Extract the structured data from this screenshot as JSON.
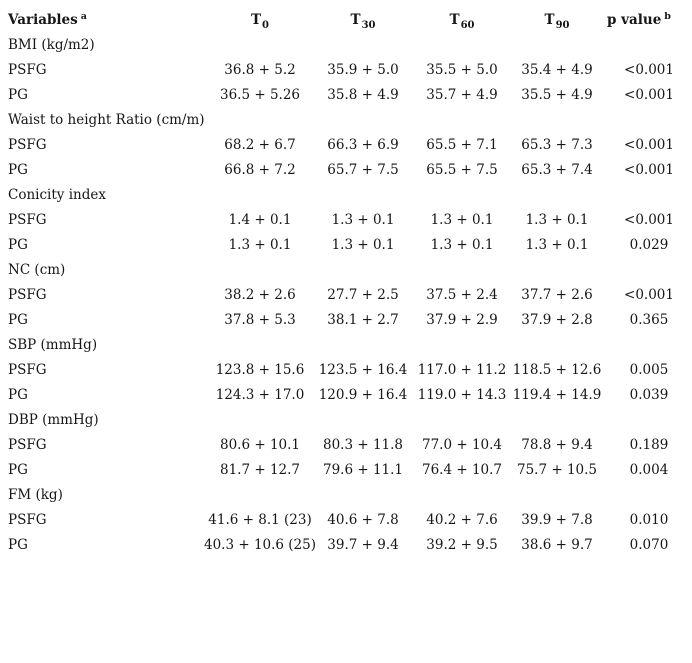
{
  "colors": {
    "background": "#ffffff",
    "text": "#161616"
  },
  "table": {
    "header": {
      "variables": {
        "label": "Variables",
        "note_mark": "a"
      },
      "timepoints": [
        {
          "label": "T",
          "subscript": "0"
        },
        {
          "label": "T",
          "subscript": "30"
        },
        {
          "label": "T",
          "subscript": "60"
        },
        {
          "label": "T",
          "subscript": "90"
        }
      ],
      "p_value": {
        "label": "p value",
        "note_mark": "b"
      }
    },
    "rows": [
      {
        "type": "section",
        "label": "BMI (kg/m2)"
      },
      {
        "type": "data",
        "label": "PSFG",
        "values": [
          "36.8 + 5.2",
          "35.9 + 5.0",
          "35.5 + 5.0",
          "35.4 + 4.9"
        ],
        "p": "<0.001"
      },
      {
        "type": "data",
        "label": "PG",
        "values": [
          "36.5 + 5.26",
          "35.8 + 4.9",
          "35.7 + 4.9",
          "35.5 + 4.9"
        ],
        "p": "<0.001"
      },
      {
        "type": "section",
        "label": "Waist to height Ratio (cm/m)"
      },
      {
        "type": "data",
        "label": "PSFG",
        "values": [
          "68.2 + 6.7",
          "66.3 + 6.9",
          "65.5 + 7.1",
          "65.3 + 7.3"
        ],
        "p": "<0.001"
      },
      {
        "type": "data",
        "label": "PG",
        "values": [
          "66.8 + 7.2",
          "65.7 + 7.5",
          "65.5 + 7.5",
          "65.3 + 7.4"
        ],
        "p": "<0.001"
      },
      {
        "type": "section",
        "label": "Conicity index"
      },
      {
        "type": "data",
        "label": "PSFG",
        "values": [
          "1.4 + 0.1",
          "1.3 + 0.1",
          "1.3 + 0.1",
          "1.3 + 0.1"
        ],
        "p": "<0.001"
      },
      {
        "type": "data",
        "label": "PG",
        "values": [
          "1.3 + 0.1",
          "1.3 + 0.1",
          "1.3 + 0.1",
          "1.3 + 0.1"
        ],
        "p": "0.029"
      },
      {
        "type": "section",
        "label": "NC (cm)"
      },
      {
        "type": "data",
        "label": "PSFG",
        "values": [
          "38.2 + 2.6",
          "27.7 + 2.5",
          "37.5 + 2.4",
          "37.7 + 2.6"
        ],
        "p": "<0.001"
      },
      {
        "type": "data",
        "label": "PG",
        "values": [
          "37.8 + 5.3",
          "38.1 + 2.7",
          "37.9 + 2.9",
          "37.9 + 2.8"
        ],
        "p": "0.365"
      },
      {
        "type": "section",
        "label": "SBP (mmHg)"
      },
      {
        "type": "data",
        "label": "PSFG",
        "values": [
          "123.8 + 15.6",
          "123.5 + 16.4",
          "117.0 + 11.2",
          "118.5 + 12.6"
        ],
        "p": "0.005"
      },
      {
        "type": "data",
        "label": "PG",
        "values": [
          "124.3 + 17.0",
          "120.9 + 16.4",
          "119.0 + 14.3",
          "119.4 + 14.9"
        ],
        "p": "0.039"
      },
      {
        "type": "section",
        "label": "DBP (mmHg)"
      },
      {
        "type": "data",
        "label": "PSFG",
        "values": [
          "80.6 + 10.1",
          "80.3 + 11.8",
          "77.0 + 10.4",
          "78.8 + 9.4"
        ],
        "p": "0.189"
      },
      {
        "type": "data",
        "label": "PG",
        "values": [
          "81.7 + 12.7",
          "79.6 + 11.1",
          "76.4 + 10.7",
          "75.7 + 10.5"
        ],
        "p": "0.004"
      },
      {
        "type": "section",
        "label": "FM (kg)"
      },
      {
        "type": "data",
        "label": "PSFG",
        "values": [
          "41.6 + 8.1 (23)",
          "40.6 + 7.8",
          "40.2 + 7.6",
          "39.9 + 7.8"
        ],
        "p": "0.010"
      },
      {
        "type": "data",
        "label": "PG",
        "values": [
          "40.3 + 10.6 (25)",
          "39.7 + 9.4",
          "39.2 + 9.5",
          "38.6 + 9.7"
        ],
        "p": "0.070"
      }
    ]
  }
}
